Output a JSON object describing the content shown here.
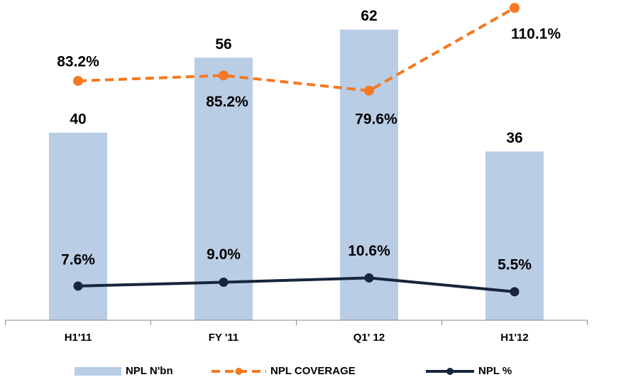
{
  "chart_data": {
    "type": "bar",
    "categories": [
      "H1'11",
      "FY '11",
      "Q1' 12",
      "H1'12"
    ],
    "ylim": [
      0,
      68
    ],
    "y2lim": [
      -5,
      112.5
    ],
    "series": [
      {
        "name": "NPL N'bn",
        "type": "bar",
        "color": "#b9cde5",
        "values": [
          40,
          56,
          62,
          36
        ]
      },
      {
        "name": "NPL COVERAGE",
        "type": "line",
        "axis": "y2",
        "dashed": true,
        "color": "#f47920",
        "values": [
          83.2,
          85.2,
          79.6,
          110.1
        ],
        "value_labels": [
          "83.2%",
          "85.2%",
          "79.6%",
          "110.1%"
        ]
      },
      {
        "name": "NPL %",
        "type": "line",
        "axis": "y2",
        "dashed": false,
        "color": "#17253d",
        "values": [
          7.6,
          9.0,
          10.6,
          5.5
        ],
        "value_labels": [
          "7.6%",
          "9.0%",
          "10.6%",
          "5.5%"
        ]
      }
    ],
    "legend": "bottom"
  }
}
